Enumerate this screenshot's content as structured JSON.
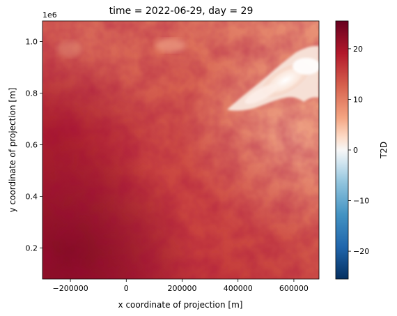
{
  "chart_data": {
    "type": "heatmap",
    "title": "time = 2022-06-29, day = 29",
    "xlabel": "x coordinate of projection [m]",
    "ylabel": "y coordinate of projection [m]",
    "y_offset_label": "1e6",
    "xlim": [
      -300000,
      690000
    ],
    "ylim": [
      80000,
      1080000
    ],
    "x_ticks": [
      {
        "value": -200000,
        "label": "−200000"
      },
      {
        "value": 0,
        "label": "0"
      },
      {
        "value": 200000,
        "label": "200000"
      },
      {
        "value": 400000,
        "label": "400000"
      },
      {
        "value": 600000,
        "label": "600000"
      }
    ],
    "y_ticks": [
      {
        "value": 200000,
        "label": "0.2"
      },
      {
        "value": 400000,
        "label": "0.4"
      },
      {
        "value": 600000,
        "label": "0.6"
      },
      {
        "value": 800000,
        "label": "0.8"
      },
      {
        "value": 1000000,
        "label": "1.0"
      }
    ],
    "colorbar": {
      "label": "T2D",
      "colormap": "RdBu_r",
      "vmin": -25.5,
      "vmax": 25.5,
      "ticks": [
        {
          "value": 20,
          "label": "20"
        },
        {
          "value": 10,
          "label": "10"
        },
        {
          "value": 0,
          "label": "0"
        },
        {
          "value": -10,
          "label": "−10"
        },
        {
          "value": -20,
          "label": "−20"
        }
      ]
    },
    "grid": false
  }
}
